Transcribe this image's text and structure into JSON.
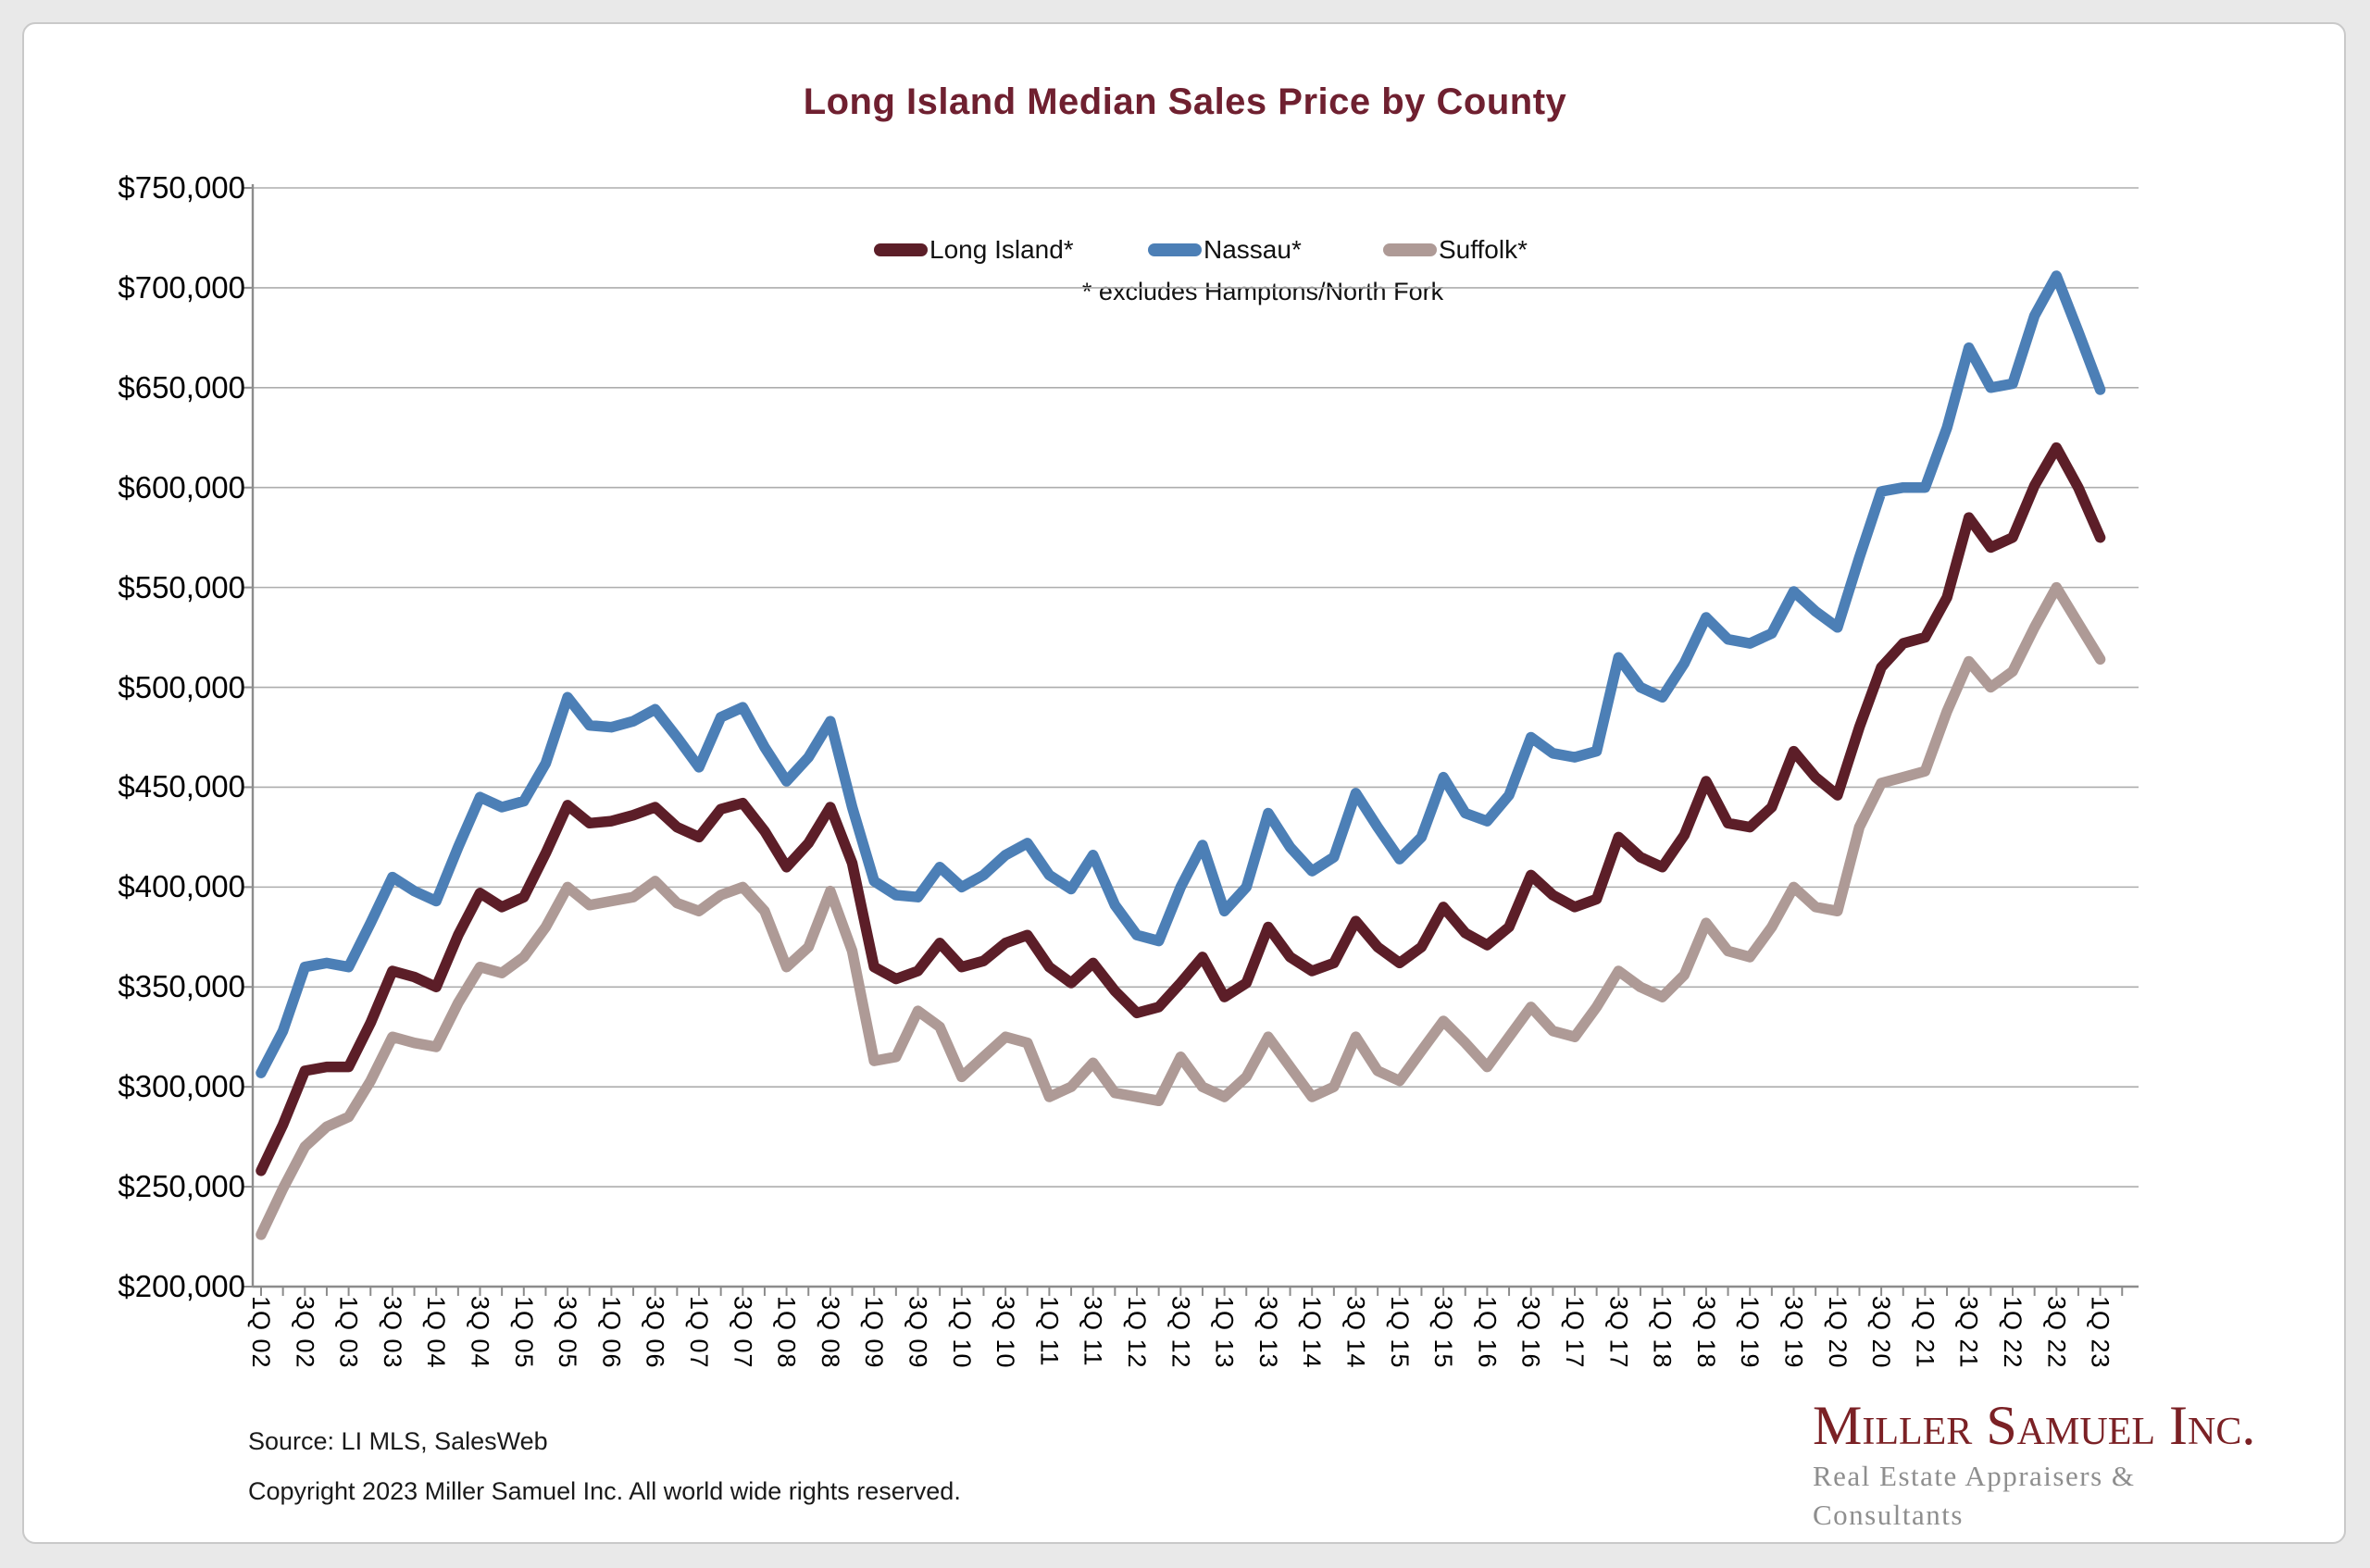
{
  "page": {
    "title": "Long Island Median Sales Price by County",
    "footnote": "*  excludes Hamptons/North Fork"
  },
  "legend": {
    "items": [
      {
        "label": "Long Island*",
        "color": "#5C1E28"
      },
      {
        "label": "Nassau*",
        "color": "#4C7FB6"
      },
      {
        "label": "Suffolk*",
        "color": "#AE9A96"
      }
    ]
  },
  "footer": {
    "source": "Source:  LI MLS, SalesWeb",
    "copyright": "Copyright 2023 Miller Samuel Inc.  All world wide rights reserved."
  },
  "logo": {
    "name": "Miller Samuel Inc.",
    "tagline": "Real Estate Appraisers & Consultants"
  },
  "chart_data": {
    "type": "line",
    "title": "Long Island Median Sales Price by County",
    "xlabel": "",
    "ylabel": "",
    "values_unit": "USD thousands",
    "grid": "horizontal",
    "legend_position": "top-center",
    "y_axis": {
      "min": 200000,
      "max": 750000,
      "step": 50000,
      "tick_labels": [
        "$200,000",
        "$250,000",
        "$300,000",
        "$350,000",
        "$400,000",
        "$450,000",
        "$500,000",
        "$550,000",
        "$600,000",
        "$650,000",
        "$700,000",
        "$750,000"
      ]
    },
    "x_tick_label_every": 2,
    "categories": [
      "1Q 02",
      "2Q 02",
      "3Q 02",
      "4Q 02",
      "1Q 03",
      "2Q 03",
      "3Q 03",
      "4Q 03",
      "1Q 04",
      "2Q 04",
      "3Q 04",
      "4Q 04",
      "1Q 05",
      "2Q 05",
      "3Q 05",
      "4Q 05",
      "1Q 06",
      "2Q 06",
      "3Q 06",
      "4Q 06",
      "1Q 07",
      "2Q 07",
      "3Q 07",
      "4Q 07",
      "1Q 08",
      "2Q 08",
      "3Q 08",
      "4Q 08",
      "1Q 09",
      "2Q 09",
      "3Q 09",
      "4Q 09",
      "1Q 10",
      "2Q 10",
      "3Q 10",
      "4Q 10",
      "1Q 11",
      "2Q 11",
      "3Q 11",
      "4Q 11",
      "1Q 12",
      "2Q 12",
      "3Q 12",
      "4Q 12",
      "1Q 13",
      "2Q 13",
      "3Q 13",
      "4Q 13",
      "1Q 14",
      "2Q 14",
      "3Q 14",
      "4Q 14",
      "1Q 15",
      "2Q 15",
      "3Q 15",
      "4Q 15",
      "1Q 16",
      "2Q 16",
      "3Q 16",
      "4Q 16",
      "1Q 17",
      "2Q 17",
      "3Q 17",
      "4Q 17",
      "1Q 18",
      "2Q 18",
      "3Q 18",
      "4Q 18",
      "1Q 19",
      "2Q 19",
      "3Q 19",
      "4Q 19",
      "1Q 20",
      "2Q 20",
      "3Q 20",
      "4Q 20",
      "1Q 21",
      "2Q 21",
      "3Q 21",
      "4Q 21",
      "1Q 22",
      "2Q 22",
      "3Q 22",
      "4Q 22",
      "1Q 23"
    ],
    "series": [
      {
        "name": "Long Island*",
        "color": "#5C1E28",
        "values": [
          258,
          281,
          308,
          310,
          310,
          332,
          358,
          355,
          350,
          376,
          397,
          390,
          395,
          417,
          441,
          432,
          433,
          436,
          440,
          430,
          425,
          439,
          442,
          428,
          410,
          422,
          440,
          412,
          360,
          354,
          358,
          372,
          360,
          363,
          372,
          376,
          360,
          352,
          362,
          348,
          337,
          340,
          352,
          365,
          345,
          352,
          380,
          365,
          358,
          362,
          383,
          370,
          362,
          370,
          390,
          377,
          371,
          380,
          406,
          396,
          390,
          394,
          425,
          415,
          410,
          426,
          453,
          432,
          430,
          440,
          468,
          455,
          446,
          480,
          510,
          522,
          525,
          545,
          585,
          570,
          575,
          601,
          620,
          600,
          575
        ]
      },
      {
        "name": "Nassau*",
        "color": "#4C7FB6",
        "values": [
          307,
          328,
          360,
          362,
          360,
          382,
          405,
          398,
          393,
          420,
          445,
          440,
          443,
          462,
          495,
          481,
          480,
          483,
          489,
          475,
          460,
          485,
          490,
          470,
          453,
          465,
          483,
          440,
          403,
          396,
          395,
          410,
          400,
          406,
          416,
          422,
          406,
          399,
          416,
          391,
          376,
          373,
          400,
          421,
          388,
          400,
          437,
          420,
          408,
          415,
          447,
          430,
          414,
          425,
          455,
          437,
          433,
          446,
          475,
          467,
          465,
          468,
          515,
          500,
          495,
          512,
          535,
          524,
          522,
          527,
          548,
          538,
          530,
          565,
          598,
          600,
          600,
          630,
          670,
          650,
          652,
          686,
          706,
          678,
          649
        ]
      },
      {
        "name": "Suffolk*",
        "color": "#AE9A96",
        "values": [
          226,
          249,
          270,
          280,
          285,
          303,
          325,
          322,
          320,
          342,
          360,
          357,
          365,
          380,
          400,
          391,
          393,
          395,
          403,
          392,
          388,
          396,
          400,
          388,
          360,
          370,
          398,
          368,
          313,
          315,
          338,
          330,
          305,
          315,
          325,
          322,
          295,
          300,
          312,
          297,
          295,
          293,
          315,
          300,
          295,
          305,
          325,
          310,
          295,
          300,
          325,
          308,
          303,
          318,
          333,
          322,
          310,
          325,
          340,
          328,
          325,
          340,
          358,
          350,
          345,
          356,
          382,
          368,
          365,
          380,
          400,
          390,
          388,
          430,
          452,
          455,
          458,
          488,
          513,
          500,
          508,
          530,
          550,
          532,
          514
        ]
      }
    ]
  }
}
